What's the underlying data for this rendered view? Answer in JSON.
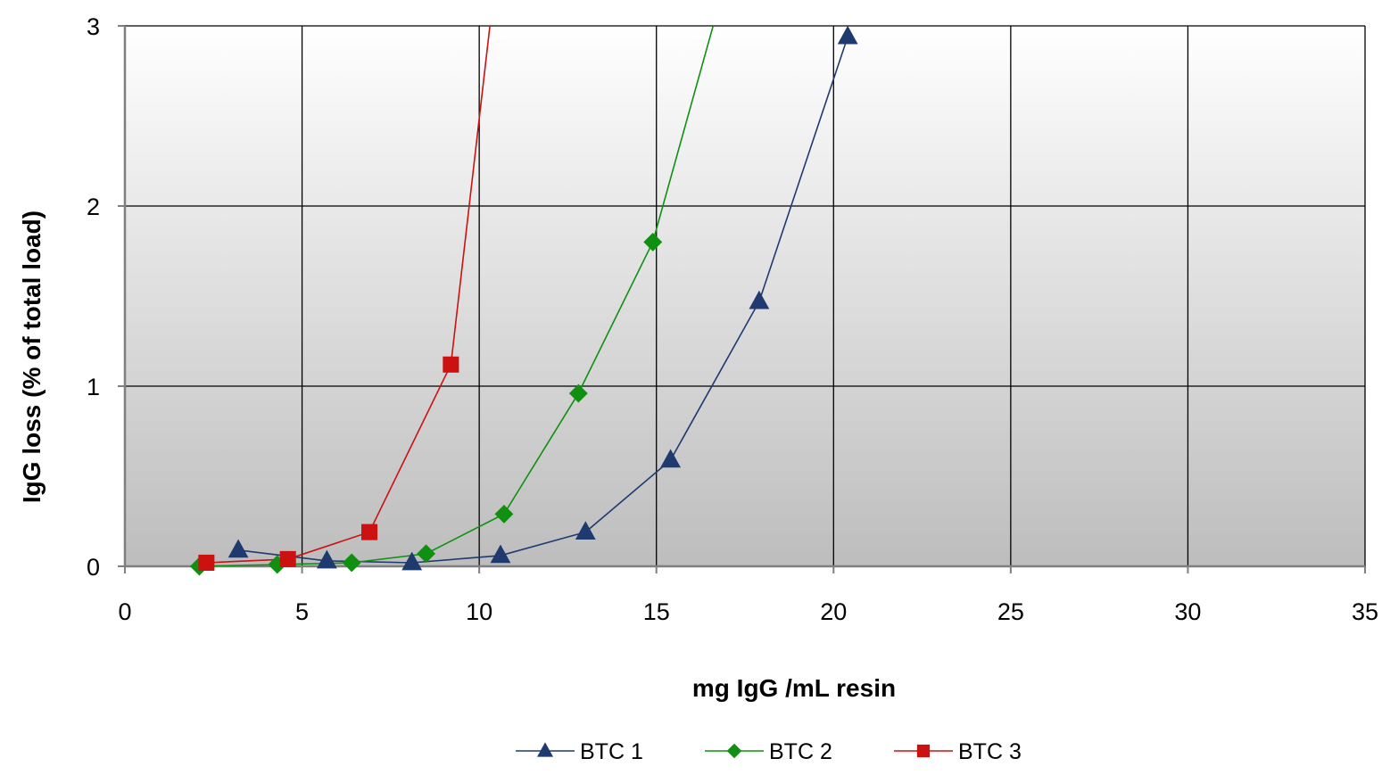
{
  "chart_data": {
    "type": "line",
    "title": "",
    "xlabel": "mg IgG /mL resin",
    "ylabel": "IgG loss (% of total load)",
    "xlim": [
      0,
      35
    ],
    "ylim": [
      0,
      3
    ],
    "xticks": [
      0,
      5,
      10,
      15,
      20,
      25,
      30,
      35
    ],
    "yticks": [
      0,
      1,
      2,
      3
    ],
    "xtick_labels": [
      "0",
      "5",
      "10",
      "15",
      "20",
      "25",
      "30",
      "35"
    ],
    "ytick_labels": [
      "0",
      "1",
      "2",
      "3"
    ],
    "grid": true,
    "background": "vertical gradient from white (top) to gray (bottom)",
    "legend_position": "bottom-center",
    "series": [
      {
        "name": "BTC 1",
        "color": "#1F3A6E",
        "marker": "triangle",
        "points": [
          [
            3.2,
            0.09
          ],
          [
            5.7,
            0.03
          ],
          [
            8.1,
            0.02
          ],
          [
            10.6,
            0.06
          ],
          [
            13.0,
            0.19
          ],
          [
            15.4,
            0.59
          ],
          [
            17.9,
            1.47
          ],
          [
            20.4,
            2.94
          ]
        ]
      },
      {
        "name": "BTC 2",
        "color": "#109010",
        "marker": "diamond",
        "points": [
          [
            2.1,
            0.0
          ],
          [
            4.3,
            0.01
          ],
          [
            6.4,
            0.02
          ],
          [
            8.5,
            0.07
          ],
          [
            10.7,
            0.29
          ],
          [
            12.8,
            0.96
          ],
          [
            14.9,
            1.8
          ],
          [
            16.6,
            3.0
          ]
        ],
        "marker_points": [
          [
            2.1,
            0.0
          ],
          [
            4.3,
            0.01
          ],
          [
            6.4,
            0.02
          ],
          [
            8.5,
            0.07
          ],
          [
            10.7,
            0.29
          ],
          [
            12.8,
            0.96
          ],
          [
            14.9,
            1.8
          ]
        ]
      },
      {
        "name": "BTC 3",
        "color": "#CC1111",
        "marker": "square",
        "points": [
          [
            2.3,
            0.02
          ],
          [
            4.6,
            0.04
          ],
          [
            6.9,
            0.19
          ],
          [
            9.2,
            1.12
          ],
          [
            10.3,
            3.0
          ]
        ],
        "marker_points": [
          [
            2.3,
            0.02
          ],
          [
            4.6,
            0.04
          ],
          [
            6.9,
            0.19
          ],
          [
            9.2,
            1.12
          ]
        ]
      }
    ]
  }
}
